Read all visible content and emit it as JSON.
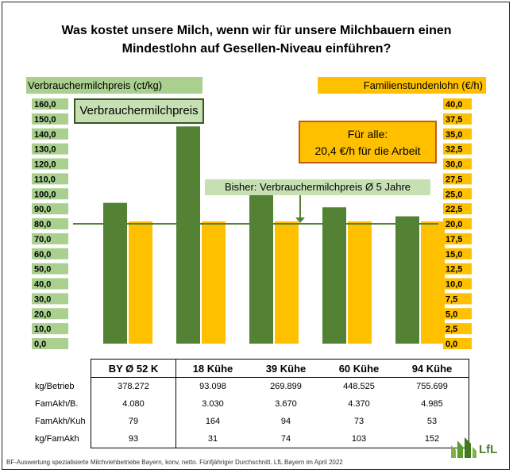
{
  "title_line1": "Was kostet unsere Milch,  wenn wir für unsere Milchbauern einen",
  "title_line2": "Mindestlohn auf Gesellen-Niveau einführen?",
  "left_axis_label": "Verbrauchermilchpreis (ct/kg)",
  "right_axis_label": "Familienstundenlohn (€/h)",
  "legend_green": "Verbrauchermilchpreis",
  "note_line1": "Für alle:",
  "note_line2": "20,4 €/h für die Arbeit",
  "bisher_label": "Bisher: Verbrauchermilchpreis Ø 5 Jahre",
  "footer": "BF-Auswertung spezialisierte Milchviehbetriebe Bayern, konv, netto. Fünfjähriger Durchschnitt. LfL Bayern im April 2022",
  "logo_text": "LfL",
  "colors": {
    "green_bar": "#548235",
    "orange_bar": "#ffc000",
    "line": "#548235"
  },
  "chart_data": {
    "type": "bar",
    "title": "Was kostet unsere Milch,  wenn wir für unsere Milchbauern einen Mindestlohn auf Gesellen-Niveau einführen?",
    "categories": [
      "BY Ø 52 K",
      "18 Kühe",
      "39 Kühe",
      "60 Kühe",
      "94 Kühe"
    ],
    "series": [
      {
        "name": "Verbrauchermilchpreis",
        "axis": "left",
        "values": [
          94,
          145,
          99.5,
          91,
          85
        ]
      },
      {
        "name": "",
        "axis": "right",
        "values": [
          20.4,
          20.4,
          20.4,
          20.4,
          20.4
        ]
      }
    ],
    "reference_line": {
      "label": "Bisher: Verbrauchermilchpreis Ø 5 Jahre",
      "value": 80
    },
    "ylabel_left": "Verbrauchermilchpreis (ct/kg)",
    "ylabel_right": "Familienstundenlohn (€/h)",
    "ylim_left": [
      0,
      160
    ],
    "ylim_right": [
      0,
      40
    ],
    "yticks_left": [
      "0,0",
      "10,0",
      "20,0",
      "30,0",
      "40,0",
      "50,0",
      "60,0",
      "70,0",
      "80,0",
      "90,0",
      "100,0",
      "110,0",
      "120,0",
      "130,0",
      "140,0",
      "150,0",
      "160,0"
    ],
    "yticks_right": [
      "0,0",
      "2,5",
      "5,0",
      "7,5",
      "10,0",
      "12,5",
      "15,0",
      "17,5",
      "20,0",
      "22,5",
      "25,0",
      "27,5",
      "30,0",
      "32,5",
      "35,0",
      "37,5",
      "40,0"
    ],
    "grid": false
  },
  "table": {
    "headers": [
      "BY Ø 52 K",
      "18 Kühe",
      "39 Kühe",
      "60 Kühe",
      "94 Kühe"
    ],
    "rows": [
      {
        "label": "kg/Betrieb",
        "values": [
          "378.272",
          "93.098",
          "269.899",
          "448.525",
          "755.699"
        ]
      },
      {
        "label": "FamAkh/B.",
        "values": [
          "4.080",
          "3.030",
          "3.670",
          "4.370",
          "4.985"
        ]
      },
      {
        "label": "FamAkh/Kuh",
        "values": [
          "79",
          "164",
          "94",
          "73",
          "53"
        ]
      },
      {
        "label": "kg/FamAkh",
        "values": [
          "93",
          "31",
          "74",
          "103",
          "152"
        ]
      }
    ]
  }
}
